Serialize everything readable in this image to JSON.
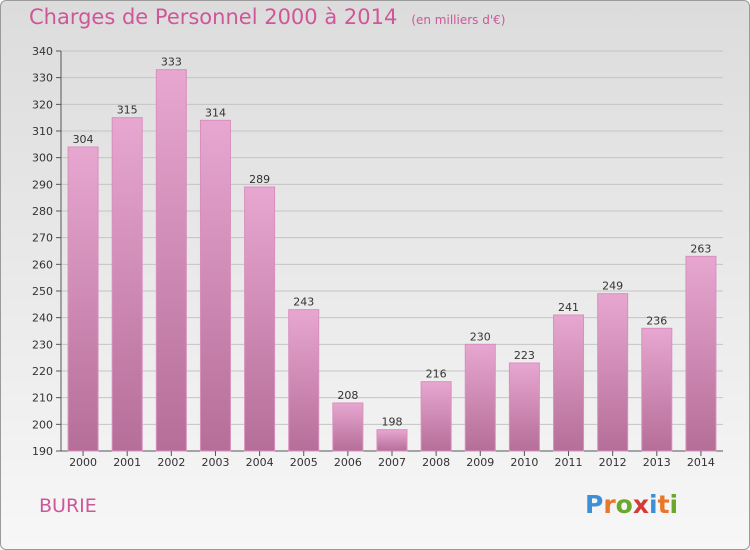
{
  "header": {
    "title": "Charges de Personnel 2000 à 2014",
    "subtitle": "(en milliers d'€)"
  },
  "footer": {
    "place": "BURIE",
    "logo_text": "Proxiti",
    "logo_colors": [
      "#3d8fd6",
      "#e8772a",
      "#6aa82b",
      "#d43a3a",
      "#3d8fd6",
      "#e8772a",
      "#6aa82b"
    ]
  },
  "colors": {
    "accent": "#d0569a",
    "bar_top": "#e7a7d0",
    "bar_bottom": "#b56e98",
    "bar_edge": "#d98fbd"
  },
  "chart_data": {
    "type": "bar",
    "title": "Charges de Personnel 2000 à 2014",
    "subtitle": "(en milliers d'€)",
    "xlabel": "",
    "ylabel": "",
    "categories": [
      "2000",
      "2001",
      "2002",
      "2003",
      "2004",
      "2005",
      "2006",
      "2007",
      "2008",
      "2009",
      "2010",
      "2011",
      "2012",
      "2013",
      "2014"
    ],
    "values": [
      304,
      315,
      333,
      314,
      289,
      243,
      208,
      198,
      216,
      230,
      223,
      241,
      249,
      236,
      263
    ],
    "ylim": [
      190,
      340
    ],
    "yticks": [
      190,
      200,
      210,
      220,
      230,
      240,
      250,
      260,
      270,
      280,
      290,
      300,
      310,
      320,
      330,
      340
    ],
    "grid": true,
    "legend": "none"
  }
}
